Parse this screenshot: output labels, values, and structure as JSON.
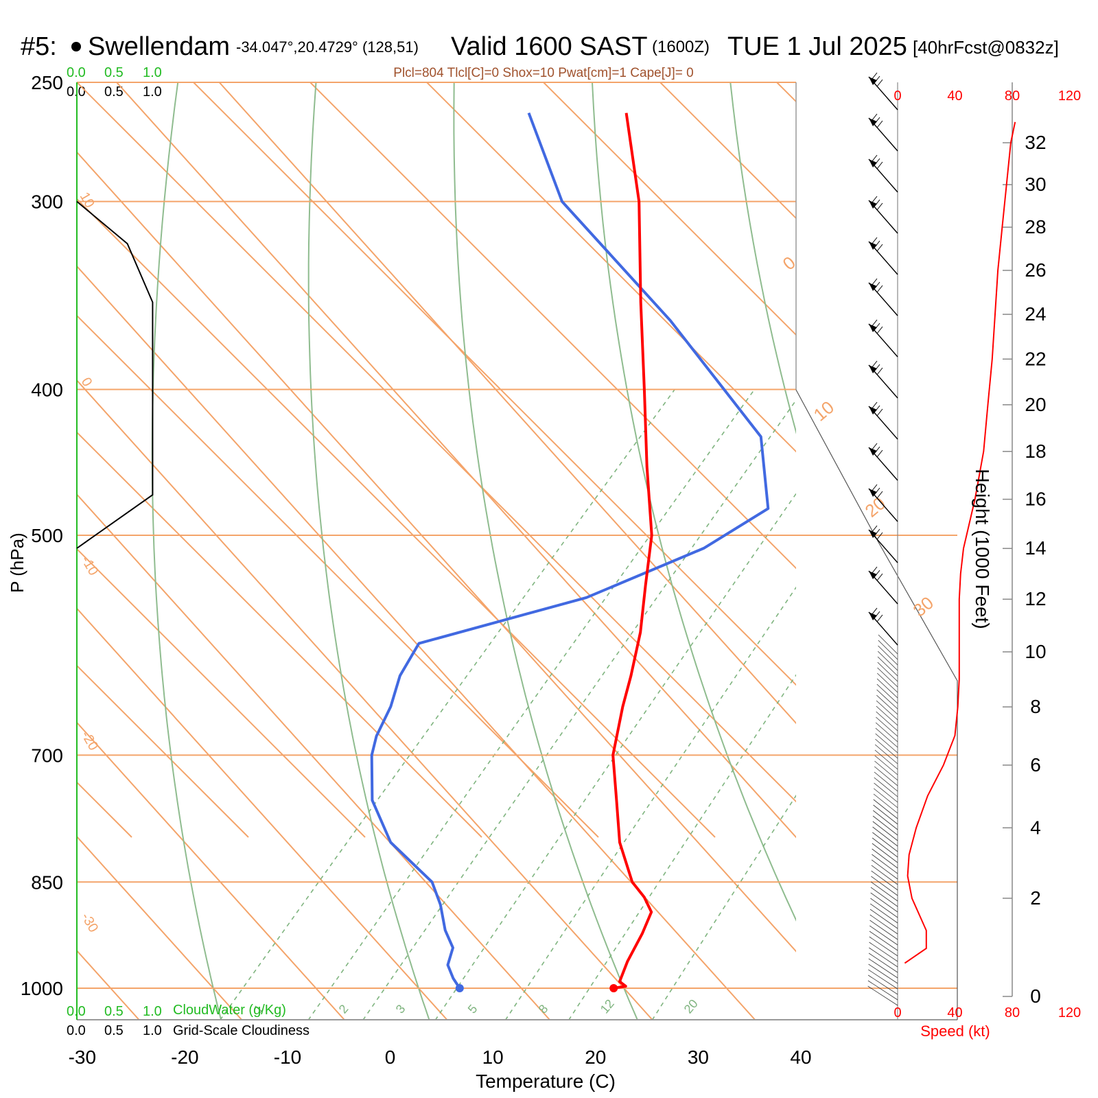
{
  "header": {
    "station_num": "#5:",
    "station_name": "Swellendam",
    "coords": "-34.047°,20.4729° (128,51)",
    "valid": "Valid 1600 SAST",
    "zulu": "(1600Z)",
    "date": "TUE 1 Jul 2025",
    "forecast": "[40hrFcst@0832z]",
    "indices": "Plcl=804 Tlcl[C]=0 Shox=10 Pwat[cm]=1 Cape[J]= 0"
  },
  "cloud_scale": {
    "green": [
      "0.0",
      "0.5",
      "1.0"
    ],
    "black": [
      "0.0",
      "0.5",
      "1.0"
    ],
    "cloudwater_label": "CloudWater (g/Kg)",
    "cloudiness_label": "Grid-Scale Cloudiness"
  },
  "colors": {
    "isotherm": "#f4a46a",
    "dry_adiabat": "#8fbc8f",
    "mixing_ratio": "#7fb47f",
    "temperature": "#ff0000",
    "dewpoint": "#4169e1",
    "wind": "#000000",
    "speed_axis": "#ff0000",
    "cloud_green": "#22bb22"
  },
  "chart_data": {
    "type": "line",
    "title": "Valid 1600 SAST (1600Z) TUE 1 Jul 2025",
    "xlabel": "Temperature (C)",
    "ylabel": "P (hPa)",
    "y2label": "Height (1000 Feet)",
    "speed_label": "Speed (kt)",
    "xlim": [
      -34,
      36
    ],
    "ylim": [
      1050,
      250
    ],
    "y_scale": "log",
    "x_ticks": [
      "-30",
      "-20",
      "-10",
      "0",
      "10",
      "20",
      "30",
      "40"
    ],
    "pressure_ticks": [
      "250",
      "300",
      "400",
      "500",
      "700",
      "850",
      "1000"
    ],
    "height_ticks": [
      "0",
      "2",
      "4",
      "6",
      "8",
      "10",
      "12",
      "14",
      "16",
      "18",
      "20",
      "22",
      "24",
      "26",
      "28",
      "30",
      "32"
    ],
    "speed_ticks": [
      "0",
      "40",
      "80",
      "120"
    ],
    "isotherm_labels": [
      "-30",
      "-20",
      "-10",
      "0",
      "10",
      "20",
      "30",
      "0",
      "10"
    ],
    "mixing_ratio_labels": [
      "1",
      "2",
      "3",
      "5",
      "8",
      "12",
      "20"
    ],
    "series": [
      {
        "name": "Temperature",
        "pressure_hPa": [
          1000,
          997,
          990,
          960,
          920,
          890,
          870,
          850,
          800,
          750,
          700,
          650,
          620,
          580,
          540,
          500,
          450,
          400,
          350,
          300,
          262
        ],
        "temp_C": [
          19.0,
          20.0,
          19.0,
          18.0,
          17.0,
          16.0,
          14.0,
          11.5,
          6.8,
          2.8,
          -1.5,
          -4.8,
          -6.7,
          -9.6,
          -13.2,
          -17.0,
          -23.5,
          -30.5,
          -38.5,
          -47.5,
          -56.5
        ]
      },
      {
        "name": "Dewpoint",
        "pressure_hPa": [
          1000,
          985,
          965,
          940,
          915,
          880,
          850,
          800,
          750,
          700,
          680,
          650,
          620,
          590,
          550,
          510,
          480,
          430,
          360,
          300,
          262
        ],
        "temp_C": [
          4.0,
          2.5,
          0.8,
          -0.2,
          -2.5,
          -5.2,
          -8.0,
          -15.5,
          -21.0,
          -25.0,
          -26.2,
          -27.4,
          -29.2,
          -30.2,
          -17.9,
          -10.8,
          -8.0,
          -15.0,
          -34.0,
          -55.0,
          -66.0
        ]
      },
      {
        "name": "Cloudiness",
        "pressure_hPa": [
          300,
          320,
          350,
          470,
          510
        ],
        "value": [
          0.0,
          0.32,
          0.48,
          0.48,
          0.0
        ]
      },
      {
        "name": "Wind Speed",
        "height_kft": [
          0.5,
          0.8,
          1.2,
          2.0,
          2.6,
          3.2,
          4.0,
          5.0,
          6.0,
          7.0,
          8.0,
          9.0,
          10.0,
          12.0,
          13.0,
          14.0,
          15.0,
          16.0,
          18.0,
          20.0,
          22.0,
          24.0,
          26.0,
          28.0,
          30.0,
          32.0,
          33.0
        ],
        "speed_kt": [
          5,
          20,
          20,
          10,
          7,
          8,
          13,
          21,
          32,
          40,
          42,
          43,
          43,
          43,
          44,
          46,
          50,
          54,
          60,
          63,
          66,
          68,
          70,
          73,
          76,
          79,
          82
        ]
      }
    ]
  }
}
